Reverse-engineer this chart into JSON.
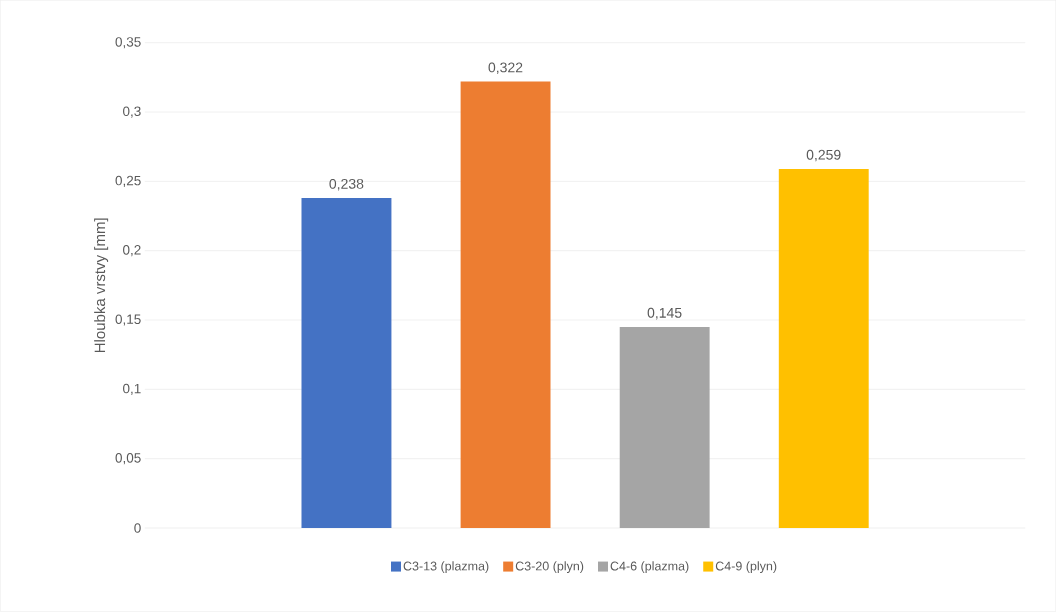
{
  "chart_data": {
    "type": "bar",
    "ylabel": "Hloubka vrstvy [mm]",
    "categories": [
      null
    ],
    "series": [
      {
        "name": "C3-13 (plazma)",
        "color": "#4472c4",
        "values": [
          0.238
        ],
        "value_labels": [
          "0,238"
        ]
      },
      {
        "name": "C3-20 (plyn)",
        "color": "#ed7d31",
        "values": [
          0.322
        ],
        "value_labels": [
          "0,322"
        ]
      },
      {
        "name": "C4-6 (plazma)",
        "color": "#a5a5a5",
        "values": [
          0.145
        ],
        "value_labels": [
          "0,145"
        ]
      },
      {
        "name": "C4-9 (plyn)",
        "color": "#ffc000",
        "values": [
          0.259
        ],
        "value_labels": [
          "0,259"
        ]
      }
    ],
    "ylim": [
      0,
      0.35
    ],
    "yticks": [
      {
        "value": 0,
        "label": "0"
      },
      {
        "value": 0.05,
        "label": "0,05"
      },
      {
        "value": 0.1,
        "label": "0,1"
      },
      {
        "value": 0.15,
        "label": "0,15"
      },
      {
        "value": 0.2,
        "label": "0,2"
      },
      {
        "value": 0.25,
        "label": "0,25"
      },
      {
        "value": 0.3,
        "label": "0,3"
      },
      {
        "value": 0.35,
        "label": "0,35"
      }
    ],
    "grid": "y",
    "legend": "bottom"
  }
}
